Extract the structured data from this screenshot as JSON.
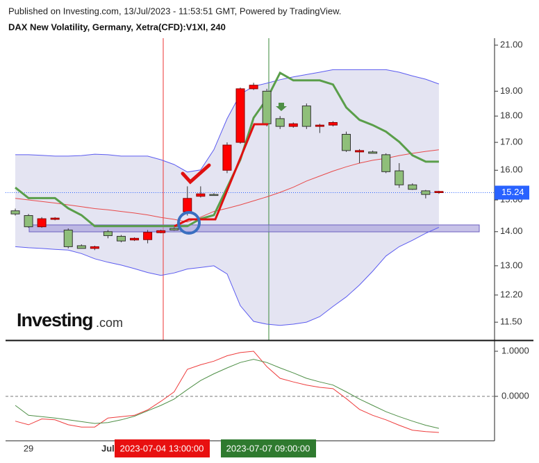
{
  "header": {
    "published": "Published on Investing.com, 13/Jul/2023 - 11:53:51 GMT, Powered by TradingView.",
    "watermark": [
      "Investing",
      ".com"
    ]
  },
  "crosshair_labels": [
    "2023-07-04 13:00:00",
    "2023-07-07 09:00:00"
  ],
  "chart_data": [
    {
      "type": "candlestick",
      "title": "DAX New Volatility, Germany, Xetra(CFD):V1XI, 240",
      "categories": [
        null,
        "29",
        null,
        null,
        null,
        null,
        null,
        "Jul",
        null,
        null,
        null,
        null,
        null,
        null,
        null,
        null,
        null,
        null,
        null,
        null,
        null,
        null,
        null,
        null,
        null,
        null,
        null,
        null,
        null,
        null,
        null,
        null,
        null
      ],
      "open": [
        14.55,
        14.15,
        14.4,
        14.42,
        13.55,
        13.5,
        13.55,
        13.88,
        13.72,
        13.8,
        13.98,
        14.03,
        14.05,
        15.05,
        15.2,
        15.15,
        16.9,
        19.1,
        19.25,
        17.7,
        17.6,
        17.7,
        17.6,
        17.65,
        17.75,
        16.7,
        16.7,
        16.6,
        15.95,
        15.5,
        15.35,
        15.18,
        15.28
      ],
      "high": [
        14.72,
        14.55,
        14.45,
        14.45,
        14.1,
        13.62,
        13.58,
        14.05,
        13.9,
        13.83,
        14.05,
        14.06,
        14.13,
        15.45,
        15.45,
        15.22,
        17.0,
        19.15,
        19.35,
        19.1,
        18.0,
        17.75,
        18.5,
        17.7,
        17.8,
        17.4,
        16.75,
        16.7,
        16.6,
        16.25,
        15.55,
        15.33,
        15.3
      ],
      "low": [
        14.5,
        14.12,
        14.12,
        14.35,
        13.5,
        13.5,
        13.45,
        13.8,
        13.68,
        13.72,
        13.65,
        13.95,
        14.03,
        14.5,
        15.08,
        15.14,
        15.9,
        16.95,
        19.05,
        17.6,
        17.5,
        17.55,
        17.5,
        17.35,
        17.6,
        16.65,
        16.25,
        16.6,
        15.9,
        15.4,
        15.33,
        15.05,
        15.2
      ],
      "close": [
        14.65,
        14.5,
        14.15,
        14.38,
        14.05,
        13.58,
        13.5,
        14.0,
        13.86,
        13.75,
        13.76,
        13.97,
        14.1,
        14.62,
        15.12,
        15.18,
        16.0,
        17.0,
        19.1,
        19.0,
        17.9,
        17.6,
        18.4,
        17.6,
        17.65,
        17.3,
        16.65,
        16.65,
        16.55,
        15.98,
        15.5,
        15.3,
        15.24
      ],
      "up_color": "#8fbf7a",
      "down_color": "#ff0000",
      "log_scale": true,
      "ylim": [
        11.06,
        21.32
      ],
      "yticks": [
        {
          "value": 11.5,
          "label": "11.50"
        },
        {
          "value": 12.2,
          "label": "12.20"
        },
        {
          "value": 13,
          "label": "13.00"
        },
        {
          "value": 14,
          "label": "14.00"
        },
        {
          "value": 15,
          "label": "15.00"
        },
        {
          "value": 16,
          "label": "16.00"
        },
        {
          "value": 17,
          "label": "17.00"
        },
        {
          "value": 18,
          "label": "18.00"
        },
        {
          "value": 19,
          "label": "19.00"
        },
        {
          "value": 21,
          "label": "21.00"
        }
      ],
      "last_value": 15.24,
      "last_color": "#2962ff",
      "band_fill": "#e4e4f2",
      "series": [
        {
          "color": "#5b5bf0",
          "line_width": 1,
          "values": [
            16.55,
            16.55,
            16.53,
            16.5,
            16.5,
            16.52,
            16.57,
            16.55,
            16.5,
            16.5,
            16.5,
            16.37,
            16.2,
            15.94,
            16.01,
            16.73,
            17.9,
            18.88,
            19.2,
            19.33,
            19.48,
            19.6,
            19.7,
            19.8,
            19.91,
            19.91,
            19.91,
            19.91,
            19.91,
            19.8,
            19.64,
            19.5,
            19.3
          ]
        },
        {
          "color": "#5b5bf0",
          "line_width": 1,
          "values": [
            13.55,
            13.52,
            13.5,
            13.47,
            13.45,
            13.35,
            13.2,
            13.1,
            13.02,
            12.92,
            12.81,
            12.73,
            12.8,
            12.91,
            12.95,
            13.0,
            12.77,
            11.92,
            11.52,
            11.45,
            11.42,
            11.45,
            11.5,
            11.64,
            11.9,
            12.15,
            12.47,
            12.85,
            13.28,
            13.55,
            13.74,
            13.95,
            14.13
          ]
        },
        {
          "color": "#e84a4a",
          "line_width": 1,
          "values": [
            15.05,
            15.0,
            14.95,
            14.9,
            14.84,
            14.78,
            14.72,
            14.68,
            14.63,
            14.58,
            14.52,
            14.44,
            14.38,
            14.3,
            14.45,
            14.63,
            14.73,
            14.84,
            14.97,
            15.1,
            15.25,
            15.42,
            15.63,
            15.8,
            15.97,
            16.12,
            16.25,
            16.35,
            16.42,
            16.52,
            16.6,
            16.67,
            16.73
          ]
        },
        {
          "color": "#5a9e4a",
          "line_width": 3,
          "values": [
            15.41,
            15.06,
            15.06,
            15.06,
            14.73,
            14.51,
            14.17,
            14.17,
            14.17,
            14.17,
            14.17,
            14.17,
            14.17,
            14.17,
            14.4,
            14.51,
            15.41,
            16.37,
            17.93,
            18.68,
            19.77,
            19.45,
            19.45,
            19.45,
            19.28,
            18.34,
            17.85,
            17.65,
            17.4,
            17.02,
            16.53,
            16.3,
            16.3
          ]
        }
      ]
    },
    {
      "type": "line",
      "ylim": [
        -0.985,
        1.246
      ],
      "yticks": [
        {
          "value": 0,
          "label": "0.0000"
        },
        {
          "value": 1,
          "label": "1.0000"
        }
      ],
      "zero_line": true,
      "series": [
        {
          "color": "#ee3b3b",
          "values": [
            -0.55,
            -0.63,
            -0.5,
            -0.52,
            -0.63,
            -0.68,
            -0.68,
            -0.48,
            -0.45,
            -0.42,
            -0.3,
            -0.11,
            0.1,
            0.6,
            0.7,
            0.78,
            0.9,
            0.97,
            1.0,
            0.66,
            0.4,
            0.32,
            0.25,
            0.2,
            0.17,
            -0.05,
            -0.29,
            -0.42,
            -0.52,
            -0.64,
            -0.75,
            -0.78,
            -0.8
          ]
        },
        {
          "color": "#4e8f46",
          "values": [
            -0.2,
            -0.42,
            -0.45,
            -0.48,
            -0.52,
            -0.56,
            -0.6,
            -0.58,
            -0.52,
            -0.44,
            -0.32,
            -0.2,
            -0.06,
            0.15,
            0.35,
            0.5,
            0.63,
            0.75,
            0.82,
            0.75,
            0.63,
            0.52,
            0.4,
            0.32,
            0.25,
            0.1,
            -0.06,
            -0.2,
            -0.34,
            -0.45,
            -0.55,
            -0.64,
            -0.71
          ]
        }
      ]
    }
  ]
}
